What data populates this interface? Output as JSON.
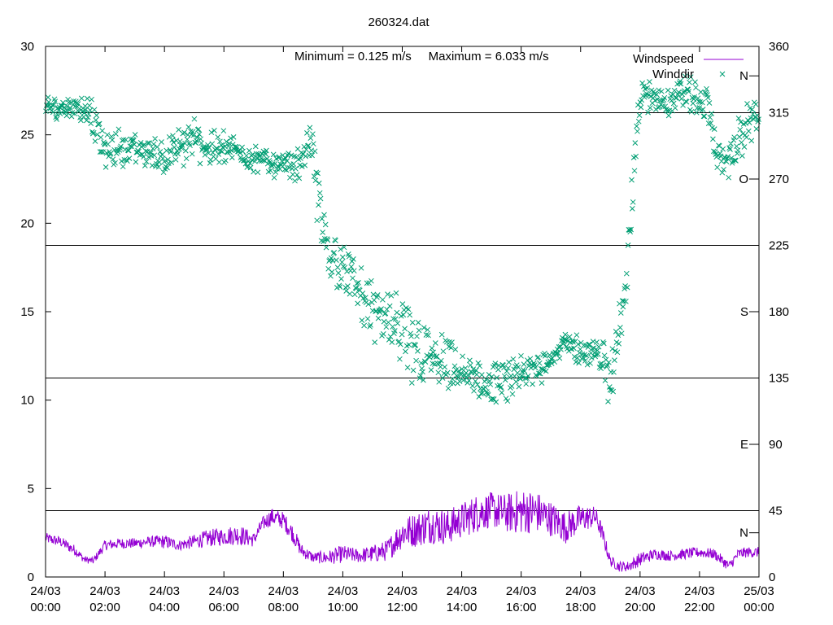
{
  "chart_data": {
    "type": "line",
    "title": "260324.dat",
    "annotation": "Minimum = 0.125 m/s     Maximum = 6.033 m/s",
    "grid": false,
    "legend_position": "top-right",
    "x_range": [
      0,
      24
    ],
    "x_ticks": [
      {
        "x": 0,
        "line1": "24/03",
        "line2": "00:00"
      },
      {
        "x": 2,
        "line1": "24/03",
        "line2": "02:00"
      },
      {
        "x": 4,
        "line1": "24/03",
        "line2": "04:00"
      },
      {
        "x": 6,
        "line1": "24/03",
        "line2": "06:00"
      },
      {
        "x": 8,
        "line1": "24/03",
        "line2": "08:00"
      },
      {
        "x": 10,
        "line1": "24/03",
        "line2": "10:00"
      },
      {
        "x": 12,
        "line1": "24/03",
        "line2": "12:00"
      },
      {
        "x": 14,
        "line1": "24/03",
        "line2": "14:00"
      },
      {
        "x": 16,
        "line1": "24/03",
        "line2": "16:00"
      },
      {
        "x": 18,
        "line1": "24/03",
        "line2": "18:00"
      },
      {
        "x": 20,
        "line1": "24/03",
        "line2": "20:00"
      },
      {
        "x": 22,
        "line1": "24/03",
        "line2": "22:00"
      },
      {
        "x": 24,
        "line1": "25/03",
        "line2": "00:00"
      }
    ],
    "y_left": {
      "range": [
        0,
        30
      ],
      "ticks": [
        0,
        5,
        10,
        15,
        20,
        25,
        30
      ]
    },
    "y_right": {
      "range": [
        0,
        360
      ],
      "ticks": [
        0,
        45,
        90,
        135,
        180,
        225,
        270,
        315,
        360
      ]
    },
    "compass_labels": [
      {
        "label": "N",
        "deg": 30
      },
      {
        "label": "E",
        "deg": 90
      },
      {
        "label": "S",
        "deg": 180
      },
      {
        "label": "O",
        "deg": 270
      },
      {
        "label": "N",
        "deg": 340
      }
    ],
    "reference_lines_deg": [
      45,
      135,
      225,
      315
    ],
    "series": [
      {
        "name": "Windspeed",
        "style": "line",
        "color": "#9400d3",
        "axis": "left",
        "x": [
          0,
          0.5,
          1,
          1.3,
          1.6,
          2,
          2.5,
          3,
          3.5,
          4,
          4.5,
          5,
          5.5,
          6,
          6.5,
          7,
          7.3,
          7.6,
          8,
          8.3,
          8.6,
          9,
          9.5,
          10,
          10.5,
          11,
          11.5,
          12,
          12.5,
          13,
          13.5,
          14,
          14.5,
          15,
          15.5,
          16,
          16.5,
          17,
          17.5,
          18,
          18.5,
          18.7,
          19,
          19.3,
          19.6,
          20,
          20.5,
          21,
          21.5,
          22,
          22.5,
          23,
          23.3,
          23.6,
          24
        ],
        "values": [
          2.2,
          2.0,
          1.5,
          1.0,
          0.9,
          1.8,
          1.9,
          1.9,
          2.0,
          2.0,
          1.8,
          2.0,
          2.2,
          2.3,
          2.4,
          2.1,
          3.0,
          3.4,
          3.2,
          2.5,
          1.5,
          1.1,
          1.1,
          1.3,
          1.2,
          1.3,
          1.5,
          2.5,
          2.7,
          3.0,
          2.8,
          3.2,
          3.6,
          3.8,
          3.6,
          3.7,
          3.7,
          3.3,
          2.8,
          3.3,
          3.4,
          2.6,
          0.9,
          0.6,
          0.6,
          1.0,
          1.3,
          1.2,
          1.3,
          1.4,
          1.3,
          0.6,
          1.3,
          1.4,
          1.4
        ],
        "spread": [
          0.3,
          0.3,
          0.3,
          0.2,
          0.2,
          0.3,
          0.3,
          0.3,
          0.3,
          0.4,
          0.3,
          0.4,
          0.5,
          0.5,
          0.6,
          0.4,
          0.4,
          0.5,
          0.5,
          0.5,
          0.4,
          0.3,
          0.4,
          0.5,
          0.4,
          0.5,
          0.6,
          0.9,
          1.0,
          1.1,
          1.0,
          1.0,
          1.1,
          1.0,
          1.1,
          1.3,
          1.2,
          1.0,
          0.9,
          0.8,
          0.6,
          0.5,
          0.3,
          0.3,
          0.3,
          0.4,
          0.3,
          0.3,
          0.3,
          0.3,
          0.3,
          0.3,
          0.3,
          0.3,
          0.3
        ]
      },
      {
        "name": "Winddir",
        "style": "points",
        "color": "#009e73",
        "axis": "right",
        "x": [
          0,
          0.5,
          1,
          1.5,
          2,
          2.5,
          3,
          3.5,
          4,
          4.5,
          5,
          5.5,
          6,
          6.5,
          7,
          7.5,
          8,
          8.5,
          8.8,
          9,
          9.2,
          9.5,
          10,
          10.5,
          11,
          11.5,
          12,
          12.5,
          13,
          13.5,
          14,
          14.5,
          15,
          15.5,
          16,
          16.5,
          17,
          17.5,
          18,
          18.5,
          18.8,
          19.0,
          19.2,
          19.5,
          20,
          20.5,
          21,
          21.5,
          22,
          22.3,
          22.6,
          23,
          23.5,
          24
        ],
        "values": [
          318,
          318,
          320,
          316,
          288,
          292,
          290,
          288,
          286,
          290,
          298,
          290,
          292,
          288,
          284,
          282,
          279,
          280,
          292,
          290,
          250,
          220,
          210,
          195,
          180,
          175,
          160,
          155,
          148,
          142,
          138,
          133,
          130,
          133,
          136,
          142,
          150,
          158,
          154,
          150,
          150,
          125,
          160,
          200,
          326,
          325,
          323,
          330,
          322,
          320,
          283,
          285,
          300,
          320
        ],
        "spread": [
          5,
          6,
          6,
          8,
          10,
          10,
          8,
          8,
          10,
          10,
          10,
          9,
          8,
          7,
          7,
          7,
          6,
          8,
          10,
          10,
          20,
          15,
          15,
          15,
          15,
          15,
          20,
          20,
          15,
          15,
          12,
          10,
          10,
          10,
          10,
          10,
          8,
          7,
          8,
          8,
          10,
          12,
          25,
          20,
          8,
          8,
          8,
          8,
          10,
          10,
          10,
          10,
          12,
          10
        ]
      }
    ]
  }
}
